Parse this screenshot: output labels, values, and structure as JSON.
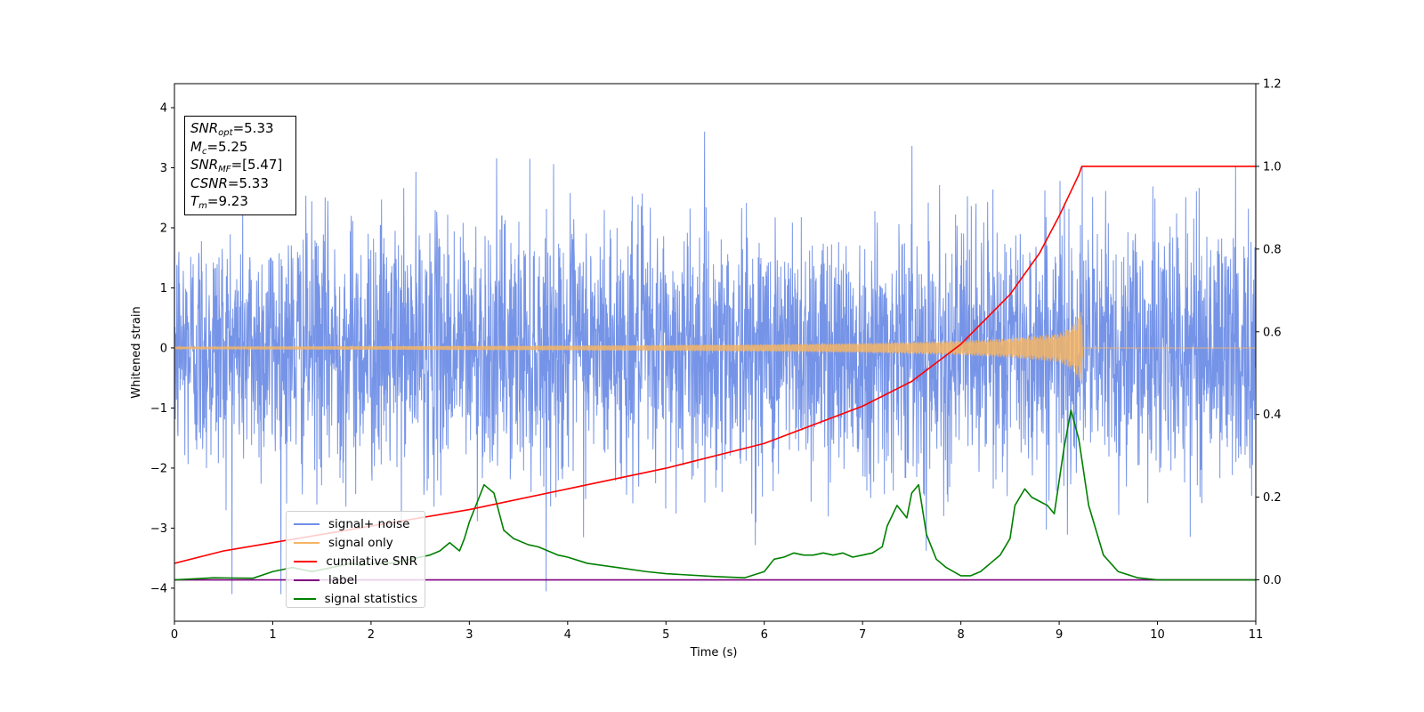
{
  "chart_data": {
    "type": "line",
    "xlabel": "Time (s)",
    "ylabel": "Whitened strain",
    "xlim": [
      0,
      11
    ],
    "ylim_left": [
      -4.55,
      4.4
    ],
    "ylim_right": [
      -0.1,
      1.2
    ],
    "xticks": [
      "0",
      "1",
      "2",
      "3",
      "4",
      "5",
      "6",
      "7",
      "8",
      "9",
      "10",
      "11"
    ],
    "yticks_left": [
      "−4",
      "−3",
      "−2",
      "−1",
      "0",
      "1",
      "2",
      "3",
      "4"
    ],
    "yticks_right": [
      "0.0",
      "0.2",
      "0.4",
      "0.6",
      "0.8",
      "1.0",
      "1.2"
    ],
    "grid": false,
    "legend_position": "lower-left",
    "colors": {
      "signal_noise": "#6f8ee6",
      "signal_only": "#f5b565",
      "cumulative_snr": "#ff0000",
      "label": "#800080",
      "signal_statistics": "#008000"
    },
    "series": [
      {
        "name": "signal+ noise",
        "axis": "left",
        "description_envelope": {
          "x": [
            0,
            11
          ],
          "y_min": [
            -4.1,
            -4.1
          ],
          "y_max": [
            4.0,
            4.0
          ]
        }
      },
      {
        "name": "signal only",
        "axis": "left",
        "x": [
          0,
          2,
          4,
          6,
          7,
          8,
          8.5,
          9.0,
          9.15,
          9.23,
          9.24,
          11
        ],
        "amplitude": [
          0.02,
          0.03,
          0.04,
          0.06,
          0.08,
          0.12,
          0.16,
          0.24,
          0.38,
          0.62,
          0,
          0
        ]
      },
      {
        "name": "cumilative SNR",
        "axis": "right",
        "x": [
          0,
          0.5,
          1,
          2,
          3,
          4,
          5,
          6,
          7,
          7.5,
          8,
          8.5,
          8.8,
          9.0,
          9.1,
          9.2,
          9.23,
          10,
          11
        ],
        "y": [
          0.04,
          0.07,
          0.09,
          0.13,
          0.17,
          0.22,
          0.27,
          0.33,
          0.42,
          0.48,
          0.57,
          0.69,
          0.79,
          0.88,
          0.93,
          0.98,
          1.0,
          1.0,
          1.0
        ]
      },
      {
        "name": "label",
        "axis": "right",
        "x": [
          0,
          11
        ],
        "y": [
          0.0,
          0.0
        ]
      },
      {
        "name": "signal statistics",
        "axis": "right",
        "x": [
          0,
          0.4,
          0.8,
          1.0,
          1.2,
          1.4,
          1.6,
          1.8,
          1.9,
          2.0,
          2.2,
          2.4,
          2.5,
          2.6,
          2.7,
          2.8,
          2.9,
          2.95,
          3.0,
          3.1,
          3.15,
          3.25,
          3.35,
          3.45,
          3.6,
          3.7,
          3.8,
          3.9,
          4.0,
          4.2,
          4.5,
          4.8,
          5.0,
          5.5,
          5.8,
          6.0,
          6.1,
          6.2,
          6.3,
          6.4,
          6.5,
          6.6,
          6.7,
          6.8,
          6.9,
          7.0,
          7.1,
          7.2,
          7.25,
          7.35,
          7.45,
          7.5,
          7.57,
          7.65,
          7.75,
          7.85,
          8.0,
          8.1,
          8.2,
          8.3,
          8.4,
          8.5,
          8.55,
          8.65,
          8.72,
          8.8,
          8.88,
          8.95,
          9.05,
          9.12,
          9.2,
          9.3,
          9.45,
          9.6,
          9.8,
          10.0,
          10.5,
          11.0
        ],
        "y": [
          0.0,
          0.005,
          0.004,
          0.02,
          0.03,
          0.02,
          0.03,
          0.04,
          0.035,
          0.04,
          0.04,
          0.05,
          0.055,
          0.06,
          0.07,
          0.09,
          0.07,
          0.1,
          0.14,
          0.2,
          0.23,
          0.21,
          0.12,
          0.1,
          0.085,
          0.08,
          0.07,
          0.06,
          0.055,
          0.04,
          0.03,
          0.02,
          0.015,
          0.008,
          0.005,
          0.02,
          0.05,
          0.055,
          0.065,
          0.06,
          0.06,
          0.065,
          0.06,
          0.065,
          0.055,
          0.06,
          0.065,
          0.08,
          0.13,
          0.18,
          0.15,
          0.21,
          0.23,
          0.11,
          0.05,
          0.03,
          0.01,
          0.01,
          0.02,
          0.04,
          0.06,
          0.1,
          0.18,
          0.22,
          0.2,
          0.19,
          0.18,
          0.16,
          0.32,
          0.41,
          0.34,
          0.18,
          0.06,
          0.02,
          0.005,
          0.0,
          0.0,
          0.0
        ]
      }
    ]
  },
  "annotation": {
    "snr_opt": {
      "sym": "SNR",
      "sub": "opt",
      "val": "=5.33"
    },
    "mc": {
      "sym": "M",
      "sub": "c",
      "val": "=5.25"
    },
    "snr_mf": {
      "sym": "SNR",
      "sub": "MF",
      "val": "=[5.47]"
    },
    "csnr": {
      "sym": "CSNR",
      "val": "=5.33"
    },
    "tm": {
      "sym": "T",
      "sub": "m",
      "val": "=9.23"
    }
  },
  "legend": [
    {
      "label": "signal+ noise",
      "color": "#6f8ee6"
    },
    {
      "label": "signal only",
      "color": "#f5b565"
    },
    {
      "label": "cumilative SNR",
      "color": "#ff0000"
    },
    {
      "label": "label",
      "color": "#800080"
    },
    {
      "label": "signal statistics",
      "color": "#008000"
    }
  ]
}
